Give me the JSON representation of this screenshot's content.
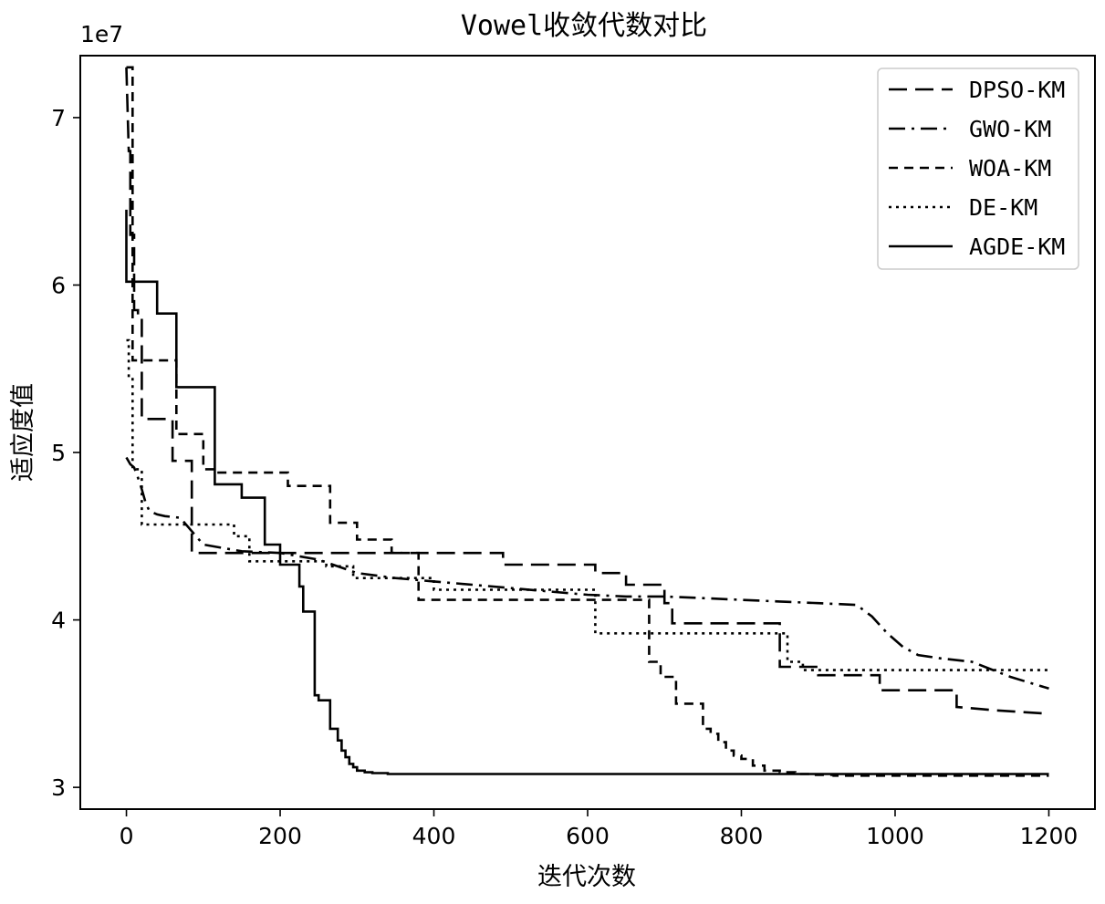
{
  "chart_data": {
    "type": "line",
    "title": "Vowel收敛代数对比",
    "xlabel": "迭代次数",
    "ylabel": "适应度值",
    "y_offset_label": "1e7",
    "xlim": [
      -60,
      1260
    ],
    "ylim": [
      2.87,
      7.37
    ],
    "x_ticks": [
      0,
      200,
      400,
      600,
      800,
      1000,
      1200
    ],
    "x_tick_labels": [
      "0",
      "200",
      "400",
      "600",
      "800",
      "1000",
      "1200"
    ],
    "y_ticks": [
      3,
      4,
      5,
      6,
      7
    ],
    "y_tick_labels": [
      "3",
      "4",
      "5",
      "6",
      "7"
    ],
    "grid": false,
    "legend_position": "top-right",
    "series": [
      {
        "name": "DPSO-KM",
        "style": "longdash",
        "x": [
          0,
          3,
          5,
          5,
          10,
          10,
          15,
          15,
          20,
          20,
          30,
          30,
          50,
          50,
          60,
          60,
          70,
          70,
          85,
          85,
          200,
          200,
          300,
          300,
          370,
          370,
          410,
          410,
          490,
          490,
          610,
          610,
          650,
          650,
          700,
          700,
          710,
          710,
          850,
          850,
          900,
          900,
          980,
          980,
          1080,
          1080,
          1130,
          1200
        ],
        "y": [
          7.3,
          6.8,
          6.8,
          6.3,
          6.3,
          5.85,
          5.85,
          5.8,
          5.8,
          5.2,
          5.2,
          5.2,
          5.2,
          5.2,
          5.2,
          4.95,
          4.95,
          4.95,
          4.95,
          4.4,
          4.4,
          4.4,
          4.4,
          4.4,
          4.4,
          4.4,
          4.4,
          4.4,
          4.4,
          4.33,
          4.33,
          4.28,
          4.28,
          4.21,
          4.21,
          4.1,
          4.1,
          3.98,
          3.98,
          3.72,
          3.72,
          3.67,
          3.67,
          3.58,
          3.58,
          3.48,
          3.46,
          3.44
        ]
      },
      {
        "name": "GWO-KM",
        "style": "dashdot",
        "x": [
          0,
          5,
          10,
          15,
          20,
          25,
          30,
          40,
          50,
          70,
          100,
          150,
          200,
          250,
          300,
          350,
          400,
          450,
          500,
          550,
          600,
          650,
          700,
          750,
          800,
          850,
          900,
          950,
          970,
          990,
          1010,
          1030,
          1060,
          1100,
          1150,
          1200
        ],
        "y": [
          4.97,
          4.93,
          4.91,
          4.85,
          4.78,
          4.7,
          4.65,
          4.63,
          4.62,
          4.61,
          4.45,
          4.41,
          4.4,
          4.36,
          4.28,
          4.25,
          4.23,
          4.21,
          4.19,
          4.17,
          4.15,
          4.14,
          4.14,
          4.13,
          4.12,
          4.11,
          4.1,
          4.09,
          4.02,
          3.92,
          3.84,
          3.79,
          3.77,
          3.75,
          3.66,
          3.59
        ]
      },
      {
        "name": "WOA-KM",
        "style": "shortdash",
        "x": [
          0,
          8,
          8,
          20,
          20,
          65,
          65,
          80,
          80,
          100,
          100,
          115,
          115,
          210,
          210,
          265,
          265,
          300,
          300,
          345,
          345,
          380,
          380,
          590,
          590,
          680,
          680,
          695,
          695,
          715,
          715,
          720,
          720,
          750,
          750,
          760,
          760,
          770,
          770,
          780,
          780,
          790,
          790,
          800,
          800,
          815,
          815,
          830,
          830,
          850,
          850,
          870,
          870,
          890,
          890,
          920,
          920,
          1200
        ],
        "y": [
          7.3,
          7.3,
          5.55,
          5.55,
          5.55,
          5.55,
          5.11,
          5.11,
          5.11,
          5.11,
          4.9,
          4.9,
          4.88,
          4.88,
          4.8,
          4.8,
          4.58,
          4.58,
          4.48,
          4.48,
          4.4,
          4.4,
          4.12,
          4.12,
          4.12,
          4.12,
          3.75,
          3.75,
          3.66,
          3.66,
          3.5,
          3.5,
          3.5,
          3.5,
          3.35,
          3.35,
          3.32,
          3.32,
          3.27,
          3.27,
          3.22,
          3.22,
          3.19,
          3.19,
          3.17,
          3.17,
          3.13,
          3.13,
          3.1,
          3.1,
          3.09,
          3.09,
          3.08,
          3.08,
          3.075,
          3.075,
          3.07,
          3.07
        ]
      },
      {
        "name": "DE-KM",
        "style": "dotted",
        "x": [
          0,
          3,
          3,
          8,
          8,
          20,
          20,
          100,
          100,
          140,
          140,
          160,
          160,
          260,
          260,
          295,
          295,
          400,
          400,
          610,
          610,
          860,
          860,
          880,
          880,
          1200
        ],
        "y": [
          5.67,
          5.67,
          5.45,
          5.45,
          4.9,
          4.9,
          4.57,
          4.57,
          4.57,
          4.57,
          4.5,
          4.5,
          4.35,
          4.35,
          4.32,
          4.32,
          4.25,
          4.25,
          4.18,
          4.18,
          3.92,
          3.92,
          3.75,
          3.75,
          3.7,
          3.7
        ]
      },
      {
        "name": "AGDE-KM",
        "style": "solid",
        "x": [
          0,
          0,
          40,
          40,
          65,
          65,
          115,
          115,
          150,
          150,
          180,
          180,
          200,
          200,
          225,
          225,
          230,
          230,
          245,
          245,
          250,
          250,
          265,
          265,
          275,
          275,
          280,
          280,
          285,
          285,
          290,
          290,
          295,
          295,
          300,
          300,
          310,
          310,
          320,
          320,
          340,
          340,
          400,
          1200
        ],
        "y": [
          6.45,
          6.02,
          6.02,
          5.83,
          5.83,
          5.39,
          5.39,
          4.81,
          4.81,
          4.73,
          4.73,
          4.45,
          4.45,
          4.33,
          4.33,
          4.2,
          4.2,
          4.05,
          4.05,
          3.55,
          3.55,
          3.52,
          3.52,
          3.35,
          3.35,
          3.28,
          3.28,
          3.22,
          3.22,
          3.18,
          3.18,
          3.14,
          3.14,
          3.12,
          3.12,
          3.1,
          3.1,
          3.09,
          3.09,
          3.085,
          3.085,
          3.08,
          3.08,
          3.08
        ]
      }
    ]
  }
}
